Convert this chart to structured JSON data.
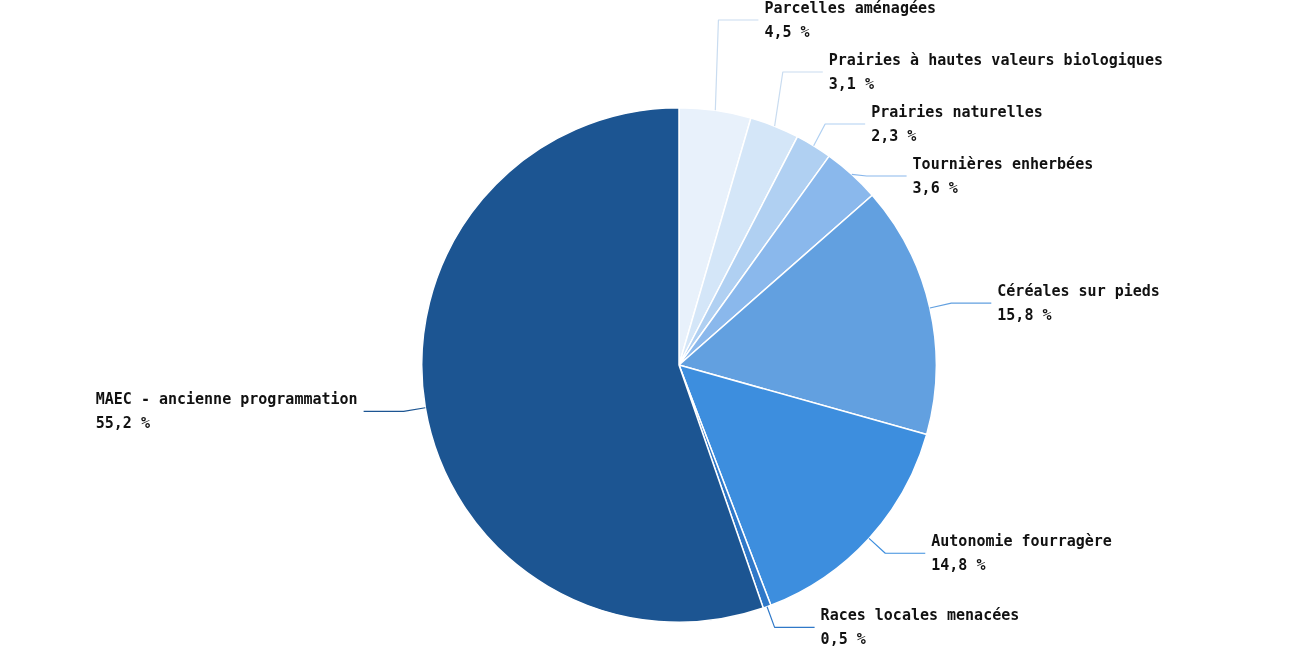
{
  "chart_data": {
    "type": "pie",
    "categories": [
      "Parcelles aménagées",
      "Prairies à hautes valeurs biologiques",
      "Prairies naturelles",
      "Tournières enherbées",
      "Céréales sur pieds",
      "Autonomie fourragère",
      "Races locales menacées",
      "MAEC - ancienne programmation"
    ],
    "values": [
      4.5,
      3.1,
      2.3,
      3.6,
      15.8,
      14.8,
      0.5,
      55.2
    ],
    "value_labels": [
      "4,5 %",
      "3,1 %",
      "2,3 %",
      "3,6 %",
      "15,8 %",
      "14,8 %",
      "0,5 %",
      "55,2 %"
    ],
    "colors": [
      "#e8f1fb",
      "#d4e6f8",
      "#b0d0f2",
      "#8ab8ec",
      "#62a0e0",
      "#3d8ede",
      "#2f78c8",
      "#1c5592"
    ],
    "legend": false
  }
}
